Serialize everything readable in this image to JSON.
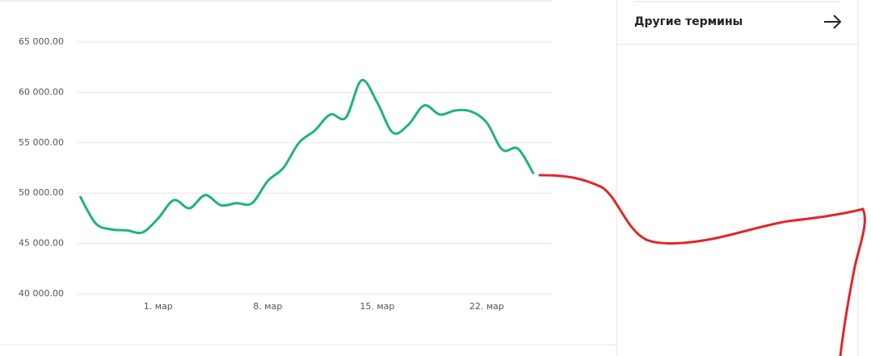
{
  "chart_data": {
    "type": "line",
    "categories": [
      null,
      null,
      null,
      null,
      null,
      "1. мар",
      null,
      null,
      null,
      null,
      null,
      null,
      "8. мар",
      null,
      null,
      null,
      null,
      null,
      null,
      "15. мар",
      null,
      null,
      null,
      null,
      null,
      null,
      "22. мар",
      null,
      null,
      null
    ],
    "series": [
      {
        "color": "#1fb37e",
        "values": [
          49700,
          47000,
          46400,
          46300,
          46100,
          47500,
          49300,
          48500,
          49800,
          48800,
          49000,
          49000,
          51200,
          52500,
          55000,
          56200,
          57800,
          57500,
          61200,
          59000,
          56000,
          56800,
          58700,
          57800,
          58200,
          58100,
          57000,
          54300,
          54400,
          51900
        ]
      }
    ],
    "ylim": [
      40000,
      65000
    ],
    "yticks": [
      {
        "value": 40000,
        "label": "40 000.00"
      },
      {
        "value": 45000,
        "label": "45 000.00"
      },
      {
        "value": 50000,
        "label": "50 000.00"
      },
      {
        "value": 55000,
        "label": "55 000.00"
      },
      {
        "value": 60000,
        "label": "60 000.00"
      },
      {
        "value": 65000,
        "label": "65 000.00"
      }
    ],
    "grid": true
  },
  "side_panel": {
    "title": "Другие термины"
  }
}
